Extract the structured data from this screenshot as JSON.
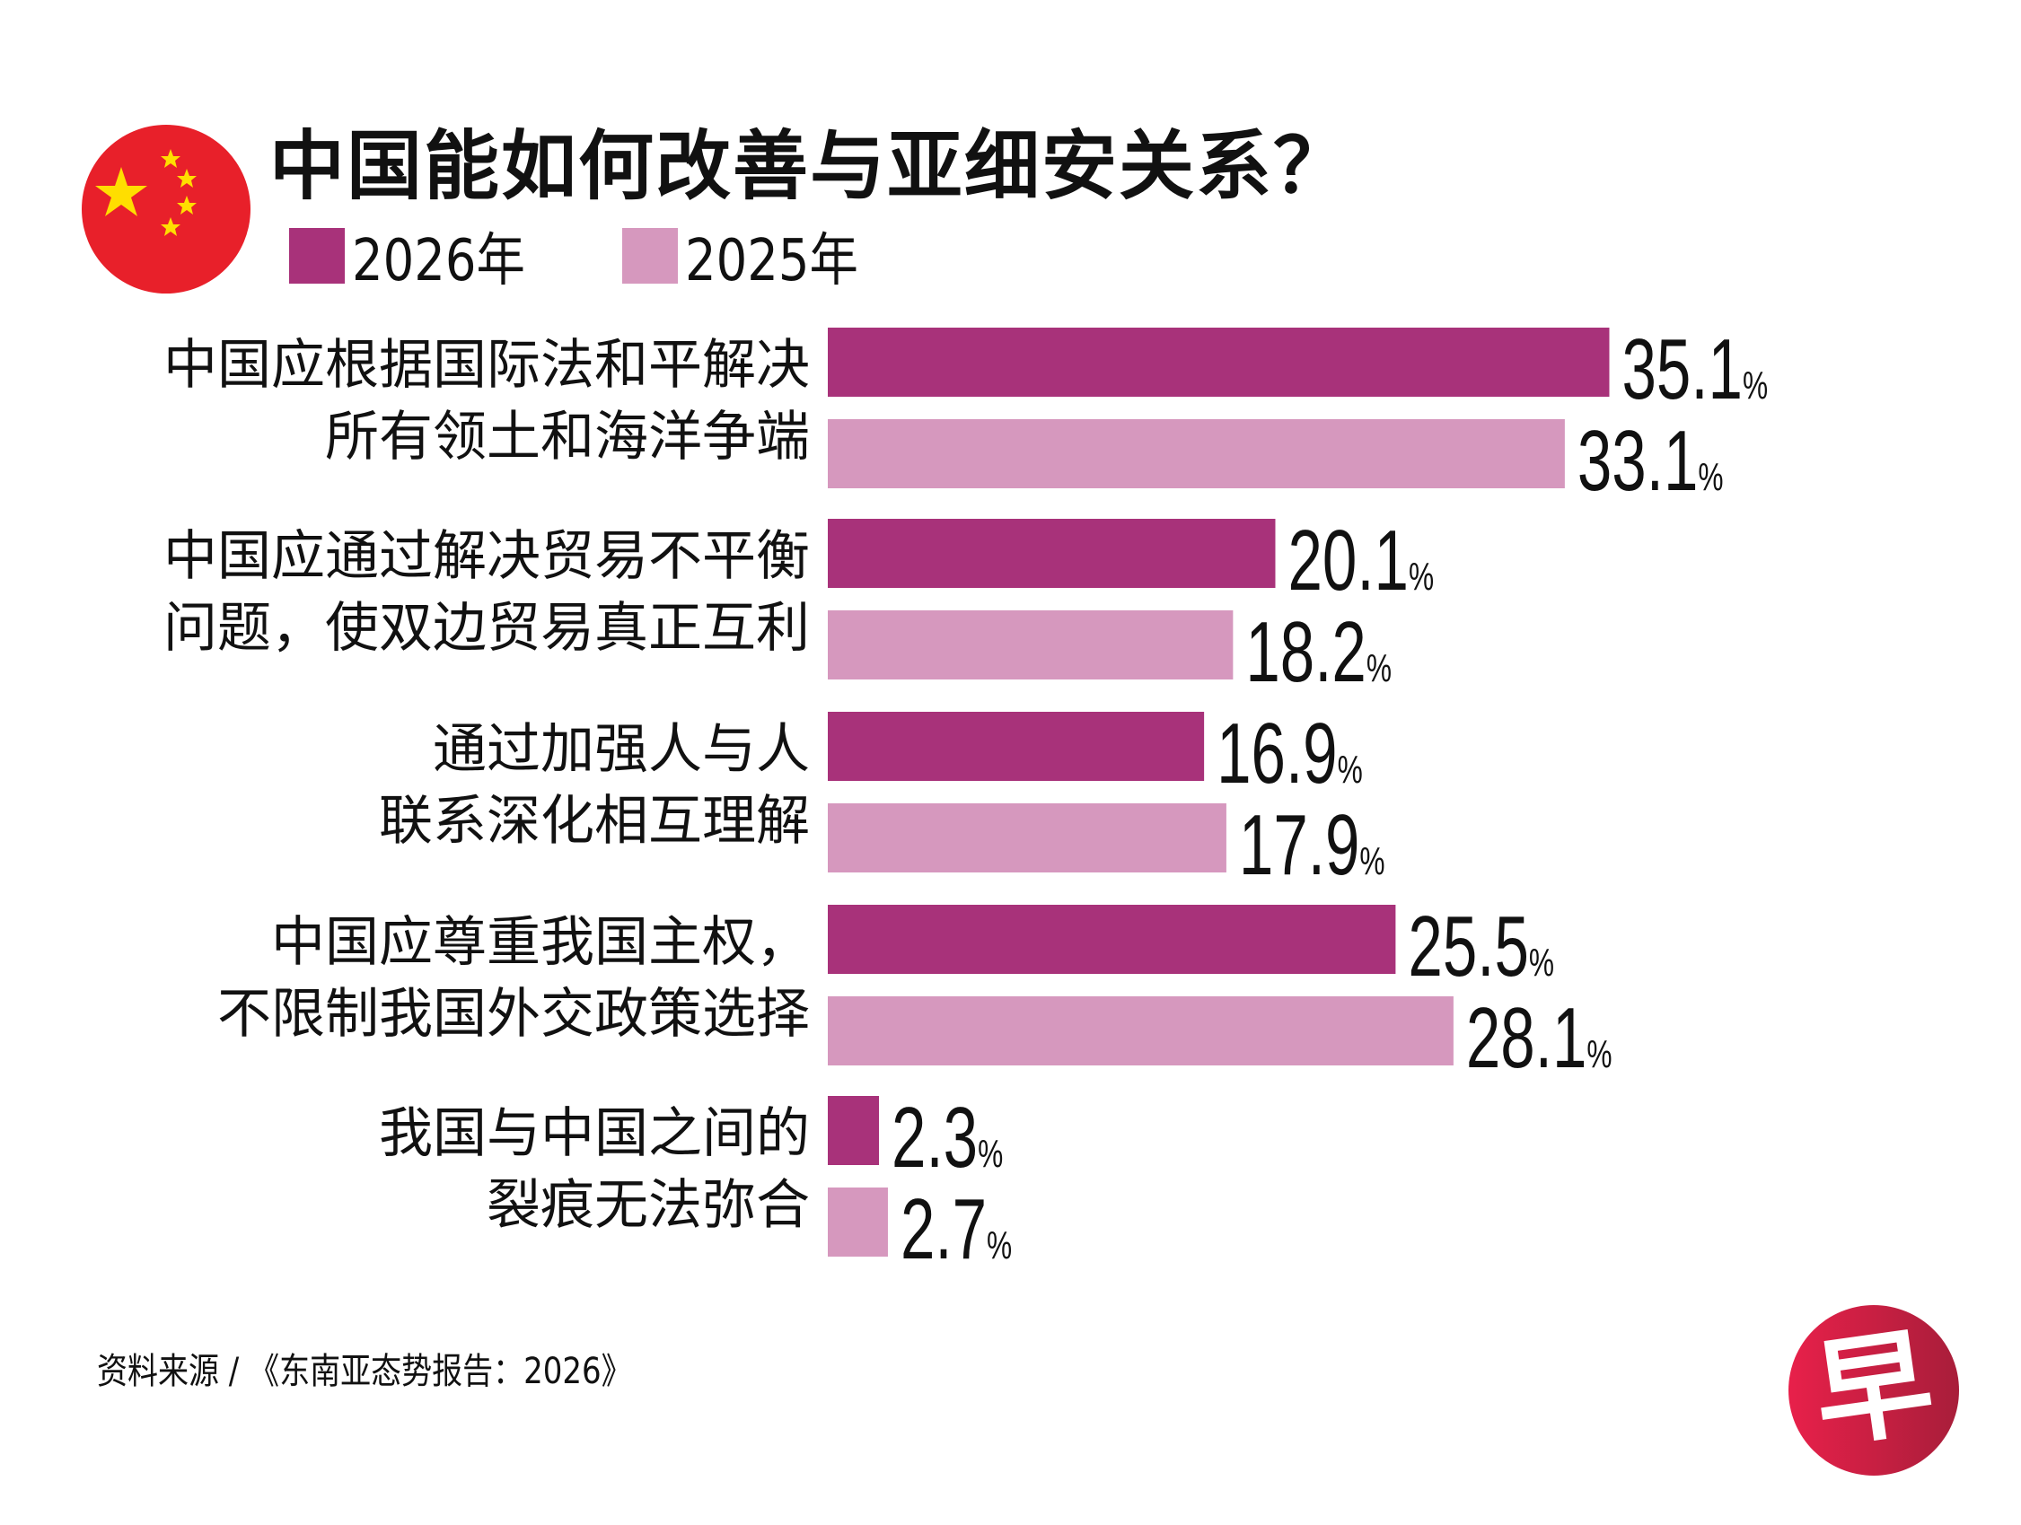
{
  "title": "中国能如何改善与亚细安关系？",
  "icons": {
    "flag": "china-flag-icon",
    "logo": "zaobao-logo-icon"
  },
  "logo_text": "早",
  "source": "资料来源 / 《东南亚态势报告：2026》",
  "legend": [
    {
      "label": "2026年",
      "color": "#a8327a"
    },
    {
      "label": "2025年",
      "color": "#d698be"
    }
  ],
  "chart_data": {
    "type": "bar",
    "orientation": "horizontal",
    "title": "中国能如何改善与亚细安关系？",
    "unit": "%",
    "categories": [
      [
        "中国应根据国际法和平解决",
        "所有领土和海洋争端"
      ],
      [
        "中国应通过解决贸易不平衡",
        "问题，使双边贸易真正互利"
      ],
      [
        "通过加强人与人",
        "联系深化相互理解"
      ],
      [
        "中国应尊重我国主权，",
        "不限制我国外交政策选择"
      ],
      [
        "我国与中国之间的",
        "裂痕无法弥合"
      ]
    ],
    "series": [
      {
        "name": "2026年",
        "color": "#a8327a",
        "values": [
          35.1,
          20.1,
          16.9,
          25.5,
          2.3
        ]
      },
      {
        "name": "2025年",
        "color": "#d698be",
        "values": [
          33.1,
          18.2,
          17.9,
          28.1,
          2.7
        ]
      }
    ],
    "grid": false,
    "legend_position": "top-left"
  }
}
